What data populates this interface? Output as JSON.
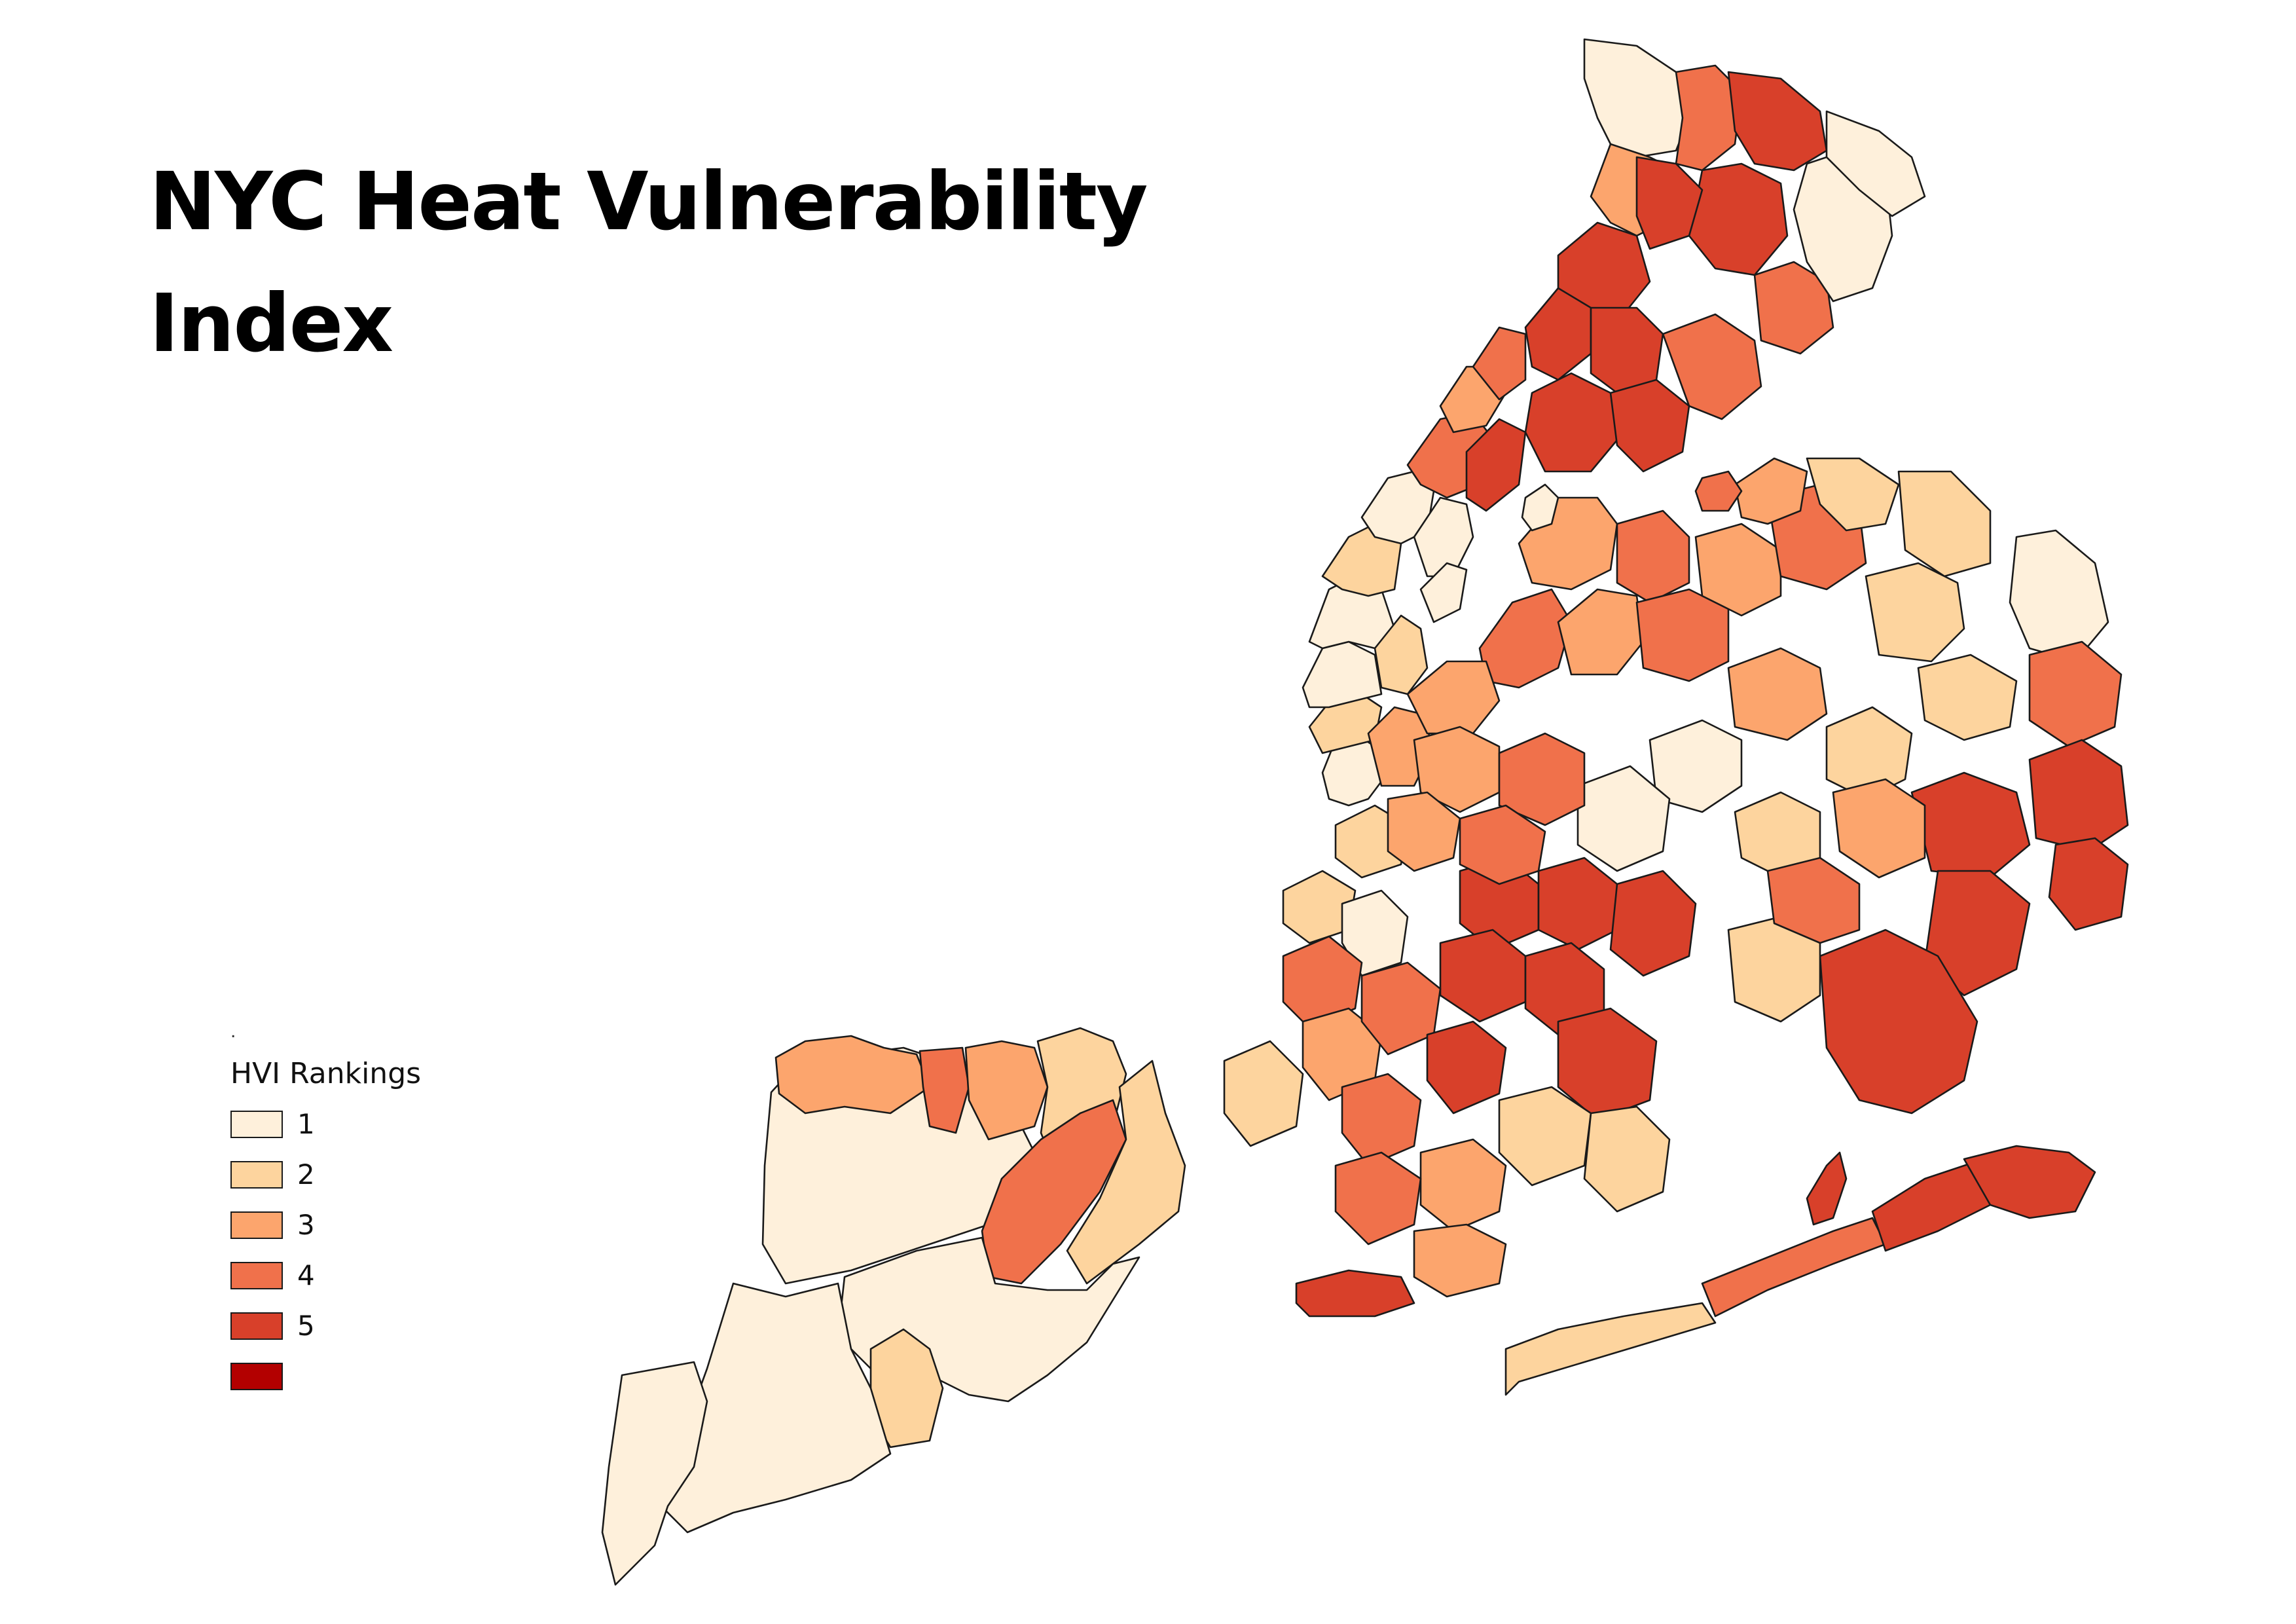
{
  "title": {
    "line1": "NYC Heat Vulnerability",
    "line2": "Index"
  },
  "legend": {
    "marker": ".",
    "title": "HVI Rankings",
    "items": [
      {
        "label": "1",
        "color": "#fef0db"
      },
      {
        "label": "2",
        "color": "#fdd49e"
      },
      {
        "label": "3",
        "color": "#fca56d"
      },
      {
        "label": "4",
        "color": "#f0714b"
      },
      {
        "label": "5",
        "color": "#d8402a"
      },
      {
        "label": "",
        "color": "#b30000"
      }
    ]
  }
}
